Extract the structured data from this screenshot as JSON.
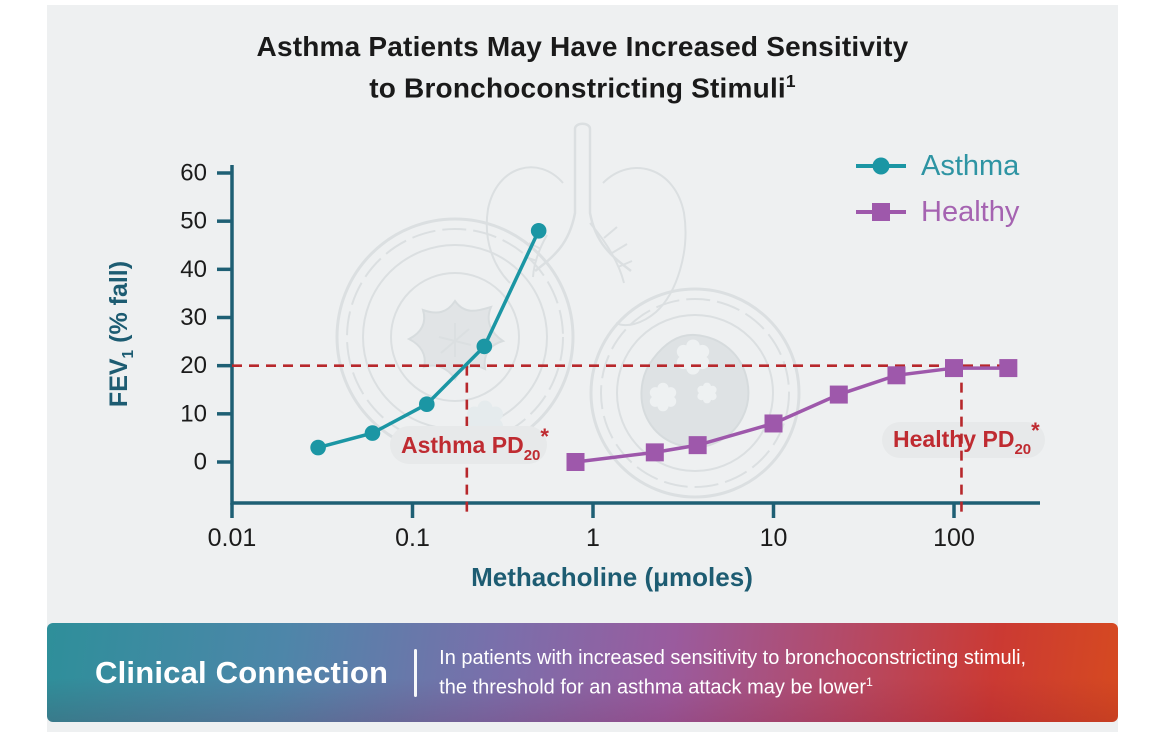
{
  "page": {
    "background": "#ffffff",
    "panel_background": "#eef0f1"
  },
  "title": {
    "line1": "Asthma Patients May Have Increased Sensitivity",
    "line2_main": "to Bronchoconstricting Stimuli",
    "line2_ref": "1"
  },
  "legend": {
    "items": [
      {
        "label": "Asthma",
        "marker": "circle",
        "color": "#1b96a4"
      },
      {
        "label": "Healthy",
        "marker": "square",
        "color": "#9e58ab"
      }
    ]
  },
  "chart_data": {
    "type": "line",
    "x_scale": "log",
    "title": "",
    "xlabel": {
      "text": "Methacholine (μmoles)"
    },
    "ylabel": {
      "main": "FEV",
      "sub": "1",
      "rest": " (% fall)"
    },
    "x_ticks": [
      "0.01",
      "0.1",
      "1",
      "10",
      "100"
    ],
    "x_tick_values": [
      0.01,
      0.1,
      1,
      10,
      100
    ],
    "y_ticks": [
      0,
      10,
      20,
      30,
      40,
      50,
      60
    ],
    "xlim": [
      0.01,
      300
    ],
    "ylim": [
      0,
      60
    ],
    "grid": false,
    "axis_color": "#1e5f74",
    "tick_label_color": "#1b1b1b",
    "series": [
      {
        "name": "Asthma",
        "color": "#1b96a4",
        "marker": "circle",
        "points": [
          [
            0.03,
            3
          ],
          [
            0.06,
            6
          ],
          [
            0.12,
            12
          ],
          [
            0.25,
            24
          ],
          [
            0.5,
            48
          ]
        ]
      },
      {
        "name": "Healthy",
        "color": "#9e58ab",
        "marker": "square",
        "points": [
          [
            0.8,
            0
          ],
          [
            2.2,
            2
          ],
          [
            3.8,
            3.5
          ],
          [
            10,
            8
          ],
          [
            23,
            14
          ],
          [
            48,
            18
          ],
          [
            100,
            19.5
          ],
          [
            200,
            19.5
          ]
        ]
      }
    ],
    "annotations": {
      "threshold_y": 20,
      "asthma_pd20_x": 0.2,
      "healthy_pd20_x": 110,
      "line_color": "#b7282c",
      "label_color": "#bf2b31",
      "label_background": "#e7e9ea",
      "asthma_label": {
        "text": "Asthma PD",
        "sub": "20",
        "star": "*"
      },
      "healthy_label": {
        "text": "Healthy PD",
        "sub": "20",
        "star": "*"
      }
    }
  },
  "banner": {
    "heading": "Clinical Connection",
    "line1": "In patients with increased sensitivity to bronchoconstricting stimuli,",
    "line2_main": "the threshold for an asthma attack may be lower",
    "line2_ref": "1"
  }
}
